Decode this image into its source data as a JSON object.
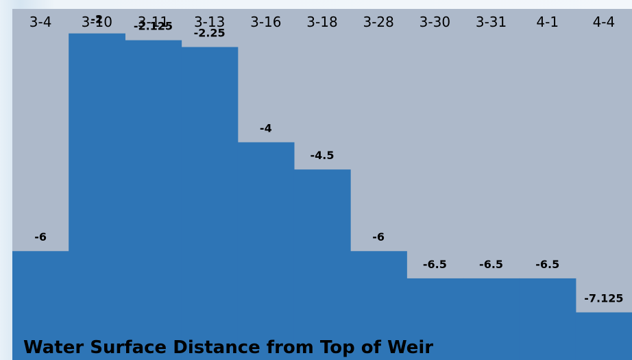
{
  "chart_data": {
    "type": "bar",
    "title": "Water Surface Distance from Top of Weir",
    "categories": [
      "3-4",
      "3-10",
      "3-11",
      "3-13",
      "3-16",
      "3-18",
      "3-28",
      "3-30",
      "3-31",
      "4-1",
      "4-4"
    ],
    "values": [
      -6,
      -2,
      -2.125,
      -2.25,
      -4,
      -4.5,
      -6,
      -6.5,
      -6.5,
      -6.5,
      -7.125
    ],
    "value_labels": [
      "-6",
      "-2",
      "-2.125",
      "-2.25",
      "-4",
      "-4.5",
      "-6",
      "-6.5",
      "-6.5",
      "-6.5",
      "-7.125"
    ],
    "xlabel": "",
    "ylabel": "",
    "ylim": [
      -8,
      -1.55
    ],
    "grid": false,
    "legend": "none",
    "colors": {
      "bar": "#2e75b6",
      "plot_background": "#adb9ca",
      "text": "#000000"
    }
  }
}
